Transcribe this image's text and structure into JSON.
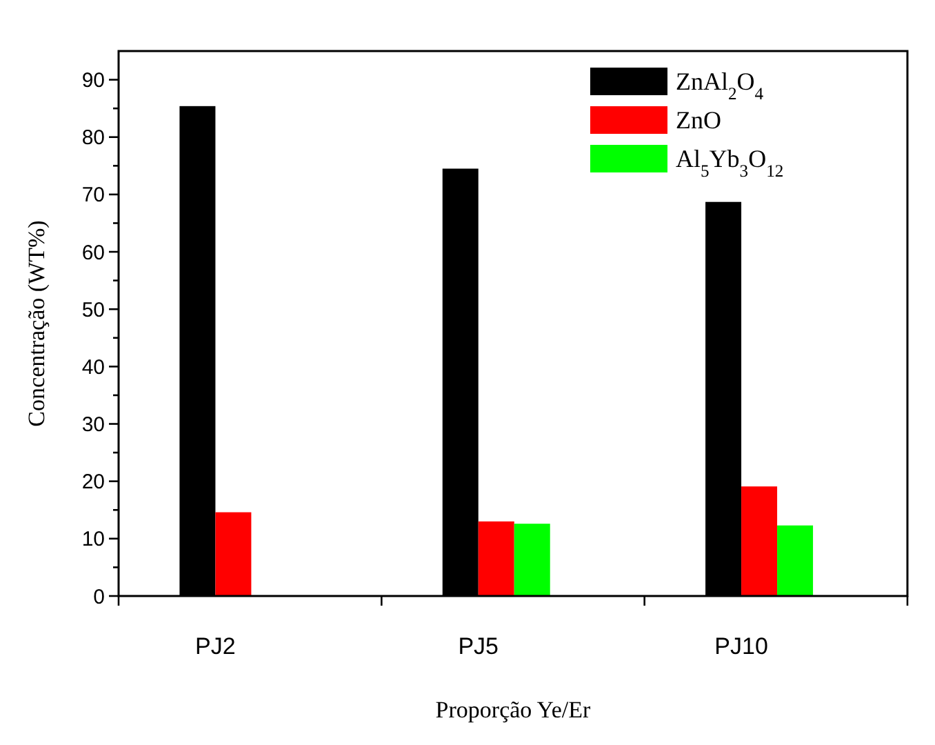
{
  "chart_data": {
    "type": "bar",
    "xlabel": "Proporção Ye/Er",
    "ylabel": "Concentração (WT%)",
    "categories": [
      "PJ2",
      "PJ5",
      "PJ10"
    ],
    "series": [
      {
        "name": "ZnAl$_{2}$O$_{4}$",
        "color": "#000000",
        "values": [
          85.4,
          74.5,
          68.7
        ]
      },
      {
        "name": "ZnO",
        "color": "#ff0000",
        "values": [
          14.6,
          13.0,
          19.1
        ]
      },
      {
        "name": "Al$_{5}$Yb$_{3}$O$_{12}$",
        "color": "#00ff00",
        "values": [
          null,
          12.6,
          12.3
        ]
      }
    ],
    "ylim": [
      0,
      95
    ],
    "yticks": [
      0,
      {
        "value": 5,
        "label": null
      },
      10,
      {
        "value": 15,
        "label": null
      },
      20,
      {
        "value": 25,
        "label": null
      },
      30,
      {
        "value": 35,
        "label": null
      },
      40,
      {
        "value": 45,
        "label": null
      },
      50,
      {
        "value": 55,
        "label": null
      },
      60,
      {
        "value": 65,
        "label": null
      },
      70,
      {
        "value": 75,
        "label": null
      },
      80,
      {
        "value": 85,
        "label": null
      },
      90
    ],
    "grid": false,
    "legend": "top right"
  }
}
